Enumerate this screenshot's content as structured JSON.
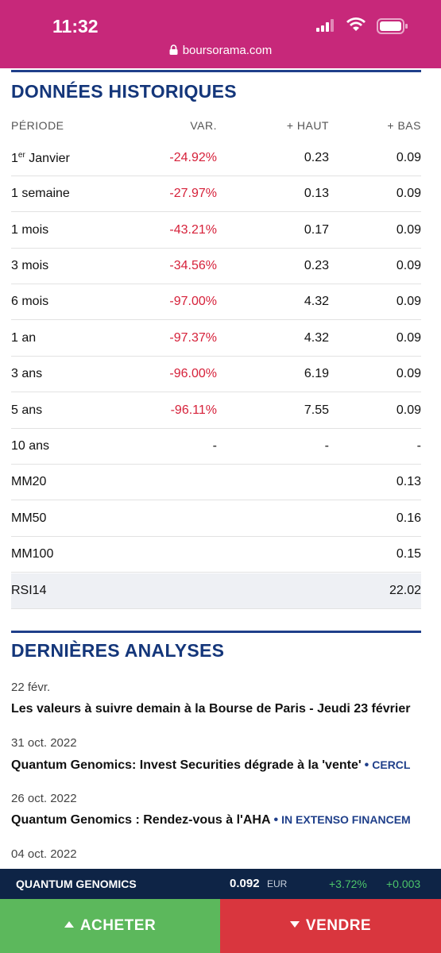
{
  "status_bar": {
    "time": "11:32",
    "url": "boursorama.com",
    "brand_color": "#c7287a"
  },
  "historique": {
    "title": "DONNÉES HISTORIQUES",
    "headers": [
      "PÉRIODE",
      "VAR.",
      "+ HAUT",
      "+ BAS"
    ],
    "rows": [
      {
        "label": "Janvier",
        "label_prefix": "1",
        "label_sup": "er",
        "var": "-24.92%",
        "haut": "0.23",
        "bas": "0.09"
      },
      {
        "label": "1 semaine",
        "var": "-27.97%",
        "haut": "0.13",
        "bas": "0.09"
      },
      {
        "label": "1 mois",
        "var": "-43.21%",
        "haut": "0.17",
        "bas": "0.09"
      },
      {
        "label": "3 mois",
        "var": "-34.56%",
        "haut": "0.23",
        "bas": "0.09"
      },
      {
        "label": "6 mois",
        "var": "-97.00%",
        "haut": "4.32",
        "bas": "0.09"
      },
      {
        "label": "1 an",
        "var": "-97.37%",
        "haut": "4.32",
        "bas": "0.09"
      },
      {
        "label": "3 ans",
        "var": "-96.00%",
        "haut": "6.19",
        "bas": "0.09"
      },
      {
        "label": "5 ans",
        "var": "-96.11%",
        "haut": "7.55",
        "bas": "0.09"
      },
      {
        "label": "10 ans",
        "var": "-",
        "haut": "-",
        "bas": "-"
      },
      {
        "label": "MM20",
        "var": "",
        "haut": "",
        "bas": "0.13"
      },
      {
        "label": "MM50",
        "var": "",
        "haut": "",
        "bas": "0.16"
      },
      {
        "label": "MM100",
        "var": "",
        "haut": "",
        "bas": "0.15"
      },
      {
        "label": "RSI14",
        "var": "",
        "haut": "",
        "bas": "22.02"
      }
    ]
  },
  "analyses": {
    "title": "DERNIÈRES ANALYSES",
    "items": [
      {
        "date": "22 févr.",
        "title": "Les valeurs à suivre demain à la Bourse de Paris - Jeudi 23 février",
        "source": ""
      },
      {
        "date": "31 oct. 2022",
        "title": "Quantum Genomics: Invest Securities dégrade à la 'vente'",
        "source": "CERCL"
      },
      {
        "date": "26 oct. 2022",
        "title": "Quantum Genomics : Rendez-vous à l'AHA",
        "source": "IN EXTENSO FINANCEM"
      },
      {
        "date": "04 oct. 2022",
        "title": "",
        "source": ""
      }
    ]
  },
  "ticker": {
    "name": "QUANTUM GENOMICS",
    "price": "0.092",
    "currency": "EUR",
    "change_pct": "+3.72%",
    "change_abs": "+0.003"
  },
  "actions": {
    "buy_label": "ACHETER",
    "sell_label": "VENDRE",
    "buy_color": "#5cb85c",
    "sell_color": "#d9363e"
  }
}
